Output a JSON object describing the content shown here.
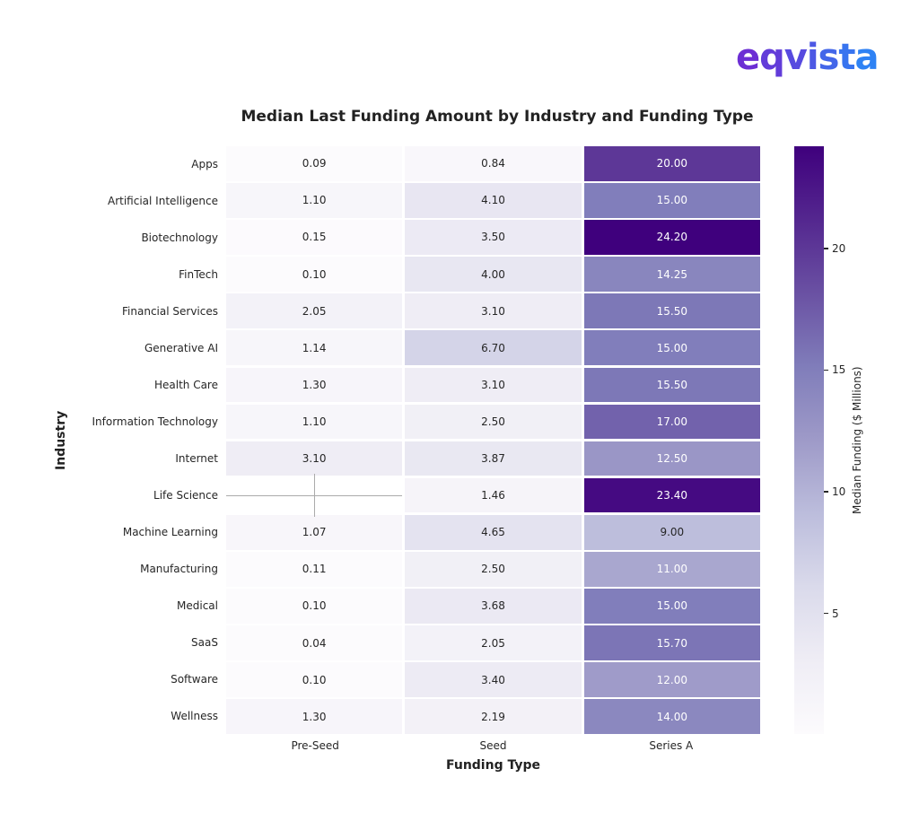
{
  "brand": {
    "logo_text": "eqvista",
    "gradient_start": "#6c2ed4",
    "gradient_end": "#2e82f4"
  },
  "chart_data": {
    "type": "heatmap",
    "title": "Median Last Funding Amount by Industry and Funding Type",
    "xlabel": "Funding Type",
    "ylabel": "Industry",
    "columns": [
      "Pre-Seed",
      "Seed",
      "Series A"
    ],
    "rows": [
      "Apps",
      "Artificial Intelligence",
      "Biotechnology",
      "FinTech",
      "Financial Services",
      "Generative AI",
      "Health Care",
      "Information Technology",
      "Internet",
      "Life Science",
      "Machine Learning",
      "Manufacturing",
      "Medical",
      "SaaS",
      "Software",
      "Wellness"
    ],
    "values": [
      [
        0.09,
        0.84,
        20.0
      ],
      [
        1.1,
        4.1,
        15.0
      ],
      [
        0.15,
        3.5,
        24.2
      ],
      [
        0.1,
        4.0,
        14.25
      ],
      [
        2.05,
        3.1,
        15.5
      ],
      [
        1.14,
        6.7,
        15.0
      ],
      [
        1.3,
        3.1,
        15.5
      ],
      [
        1.1,
        2.5,
        17.0
      ],
      [
        3.1,
        3.87,
        12.5
      ],
      [
        null,
        1.46,
        23.4
      ],
      [
        1.07,
        4.65,
        9.0
      ],
      [
        0.11,
        2.5,
        11.0
      ],
      [
        0.1,
        3.68,
        15.0
      ],
      [
        0.04,
        2.05,
        15.7
      ],
      [
        0.1,
        3.4,
        12.0
      ],
      [
        1.3,
        2.19,
        14.0
      ]
    ],
    "value_decimals": 2,
    "colormap": "Purples",
    "vmin": 0.04,
    "vmax": 24.2,
    "grid": false,
    "legend_position": "right",
    "colorbar": {
      "label": "Median Funding ($ Millions)",
      "ticks": [
        5,
        10,
        15,
        20
      ]
    },
    "missing_cells": [
      {
        "row": "Life Science",
        "column": "Pre-Seed"
      }
    ],
    "annotation_text_colors": {
      "on_light": "#262626",
      "on_dark": "#ffffff"
    }
  }
}
